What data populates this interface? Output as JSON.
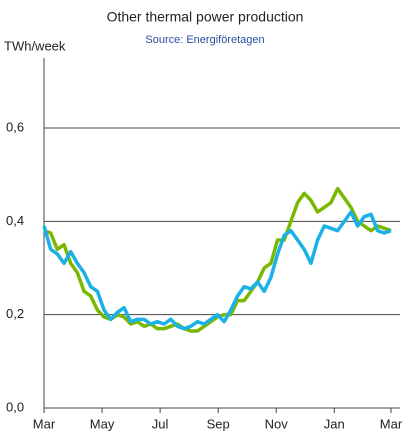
{
  "chart_data": {
    "type": "line",
    "title": "Other thermal power production",
    "subtitle": "Source: Energiföretagen",
    "y_label": "TWh/week",
    "x": [
      0,
      1,
      2,
      3,
      4,
      5,
      6,
      7,
      8,
      9,
      10,
      11,
      12,
      13,
      14,
      15,
      16,
      17,
      18,
      19,
      20,
      21,
      22,
      23,
      24,
      25,
      26,
      27,
      28,
      29,
      30,
      31,
      32,
      33,
      34,
      35,
      36,
      37,
      38,
      39,
      40,
      41,
      42,
      43,
      44,
      45,
      46,
      47,
      48,
      49,
      50,
      51,
      52
    ],
    "xlim": [
      0,
      52
    ],
    "xticks": [
      {
        "value": 0,
        "label": "Mar"
      },
      {
        "value": 8.7,
        "label": "May"
      },
      {
        "value": 17.4,
        "label": "Jul"
      },
      {
        "value": 26.1,
        "label": "Sep"
      },
      {
        "value": 34.8,
        "label": "Nov"
      },
      {
        "value": 43.5,
        "label": "Jan"
      },
      {
        "value": 52,
        "label": "Mar"
      }
    ],
    "ylim": [
      0,
      0.75
    ],
    "yticks": [
      {
        "value": 0,
        "label": "0,0"
      },
      {
        "value": 0.2,
        "label": "0,2"
      },
      {
        "value": 0.4,
        "label": "0,4"
      },
      {
        "value": 0.6,
        "label": "0,6"
      }
    ],
    "grid": true,
    "series": [
      {
        "color": "#7ab800",
        "values": [
          0.38,
          0.375,
          0.34,
          0.35,
          0.31,
          0.29,
          0.25,
          0.24,
          0.21,
          0.195,
          0.19,
          0.2,
          0.195,
          0.18,
          0.185,
          0.175,
          0.18,
          0.17,
          0.17,
          0.175,
          0.18,
          0.17,
          0.165,
          0.165,
          0.175,
          0.185,
          0.195,
          0.2,
          0.2,
          0.23,
          0.23,
          0.25,
          0.27,
          0.3,
          0.31,
          0.36,
          0.36,
          0.4,
          0.44,
          0.46,
          0.445,
          0.42,
          0.43,
          0.44,
          0.47,
          0.45,
          0.43,
          0.4,
          0.39,
          0.38,
          0.39,
          0.385,
          0.38
        ]
      },
      {
        "color": "#1ab0e8",
        "values": [
          0.39,
          0.34,
          0.33,
          0.31,
          0.335,
          0.31,
          0.29,
          0.26,
          0.25,
          0.21,
          0.19,
          0.205,
          0.215,
          0.185,
          0.19,
          0.19,
          0.18,
          0.185,
          0.18,
          0.19,
          0.175,
          0.17,
          0.175,
          0.185,
          0.18,
          0.19,
          0.2,
          0.185,
          0.21,
          0.24,
          0.26,
          0.255,
          0.27,
          0.25,
          0.28,
          0.33,
          0.37,
          0.38,
          0.36,
          0.34,
          0.31,
          0.36,
          0.39,
          0.385,
          0.38,
          0.4,
          0.42,
          0.39,
          0.41,
          0.415,
          0.38,
          0.375,
          0.38
        ]
      }
    ]
  }
}
